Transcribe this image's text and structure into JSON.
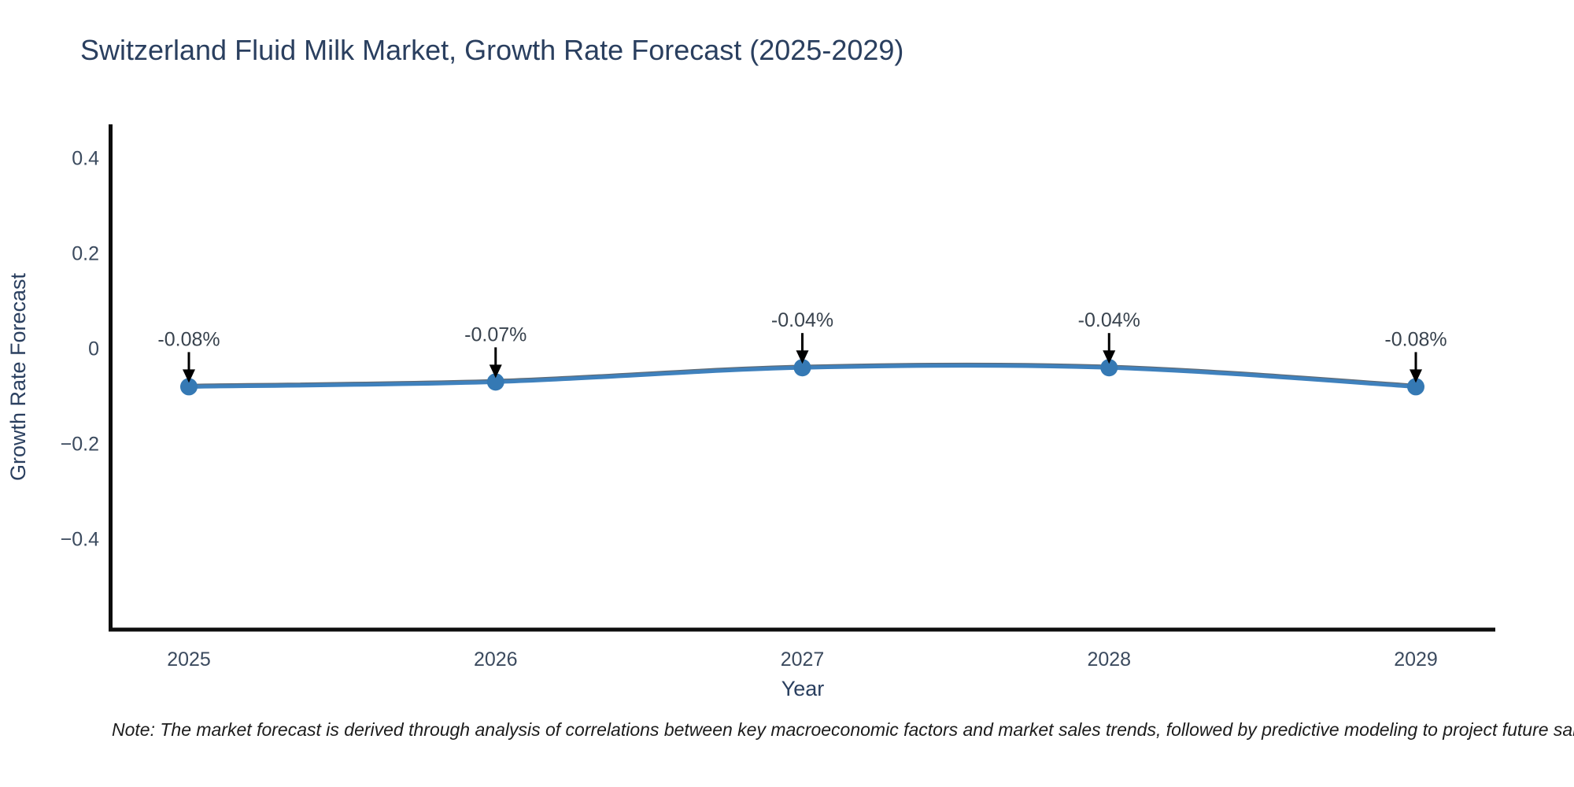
{
  "page": {
    "title": "Switzerland Fluid Milk Market, Growth Rate Forecast (2025-2029)",
    "note": "Note: The market forecast is derived through analysis of correlations between key macroeconomic factors and market sales trends, followed by predictive modeling to project future sales."
  },
  "chart_data": {
    "type": "line",
    "title": "Switzerland Fluid Milk Market, Growth Rate Forecast (2025-2029)",
    "xlabel": "Year",
    "ylabel": "Growth Rate Forecast",
    "categories": [
      "2025",
      "2026",
      "2027",
      "2028",
      "2029"
    ],
    "x": [
      2025,
      2026,
      2027,
      2028,
      2029
    ],
    "values": [
      -0.08,
      -0.07,
      -0.04,
      -0.04,
      -0.08
    ],
    "point_labels": [
      "-0.08%",
      "-0.07%",
      "-0.04%",
      "-0.04%",
      "-0.08%"
    ],
    "yticks": [
      0.4,
      0.2,
      0,
      -0.2,
      -0.4
    ],
    "ytick_labels": [
      "0.4",
      "0.2",
      "0",
      "−0.2",
      "−0.4"
    ],
    "ylim": [
      -0.59,
      0.47
    ],
    "grid": false,
    "legend": null,
    "line_shape": "spline",
    "marker": "circle",
    "annotation_arrows": true,
    "colors": {
      "line": "#3f81bd",
      "line_shadow": "#5f6b76",
      "marker_fill": "#3579b4",
      "axis": "#0d0d0d",
      "axis_label_text": "#2a3f5f",
      "tick_text": "#3b4a5e",
      "annotation_text": "#39434e",
      "arrow": "#000000"
    }
  }
}
